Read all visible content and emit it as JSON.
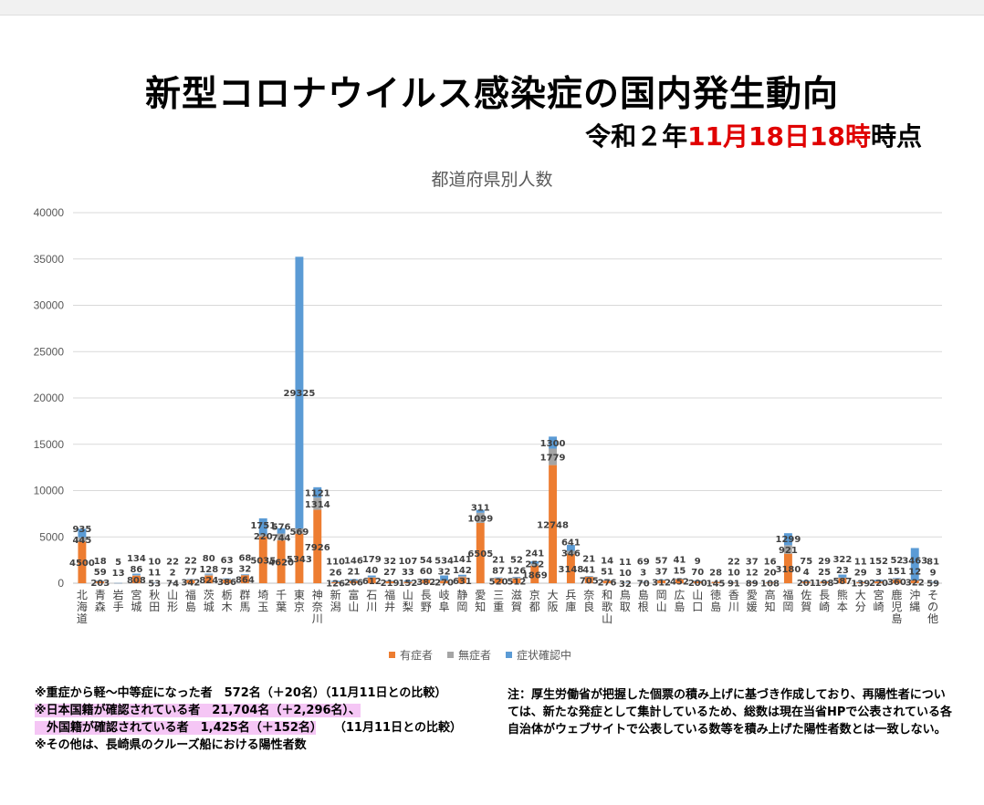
{
  "header": {
    "title": "新型コロナウイルス感染症の国内発生動向",
    "asof_prefix": "令和２年",
    "asof_red1": "11月18日",
    "asof_red2": "18時",
    "asof_suffix": "時点"
  },
  "chart_data": {
    "type": "bar",
    "stacked": true,
    "title": "都道府県別人数",
    "ylim": [
      0,
      40000
    ],
    "yticks": [
      0,
      5000,
      10000,
      15000,
      20000,
      25000,
      30000,
      35000,
      40000
    ],
    "grid": true,
    "legend_position": "bottom",
    "categories": [
      "北海道",
      "青森",
      "岩手",
      "宮城",
      "秋田",
      "山形",
      "福島",
      "茨城",
      "栃木",
      "群馬",
      "埼玉",
      "千葉",
      "東京",
      "神奈川",
      "新潟",
      "富山",
      "石川",
      "福井",
      "山梨",
      "長野",
      "岐阜",
      "静岡",
      "愛知",
      "三重",
      "滋賀",
      "京都",
      "大阪",
      "兵庫",
      "奈良",
      "和歌山",
      "鳥取",
      "島根",
      "岡山",
      "広島",
      "山口",
      "徳島",
      "香川",
      "愛媛",
      "高知",
      "福岡",
      "佐賀",
      "長崎",
      "熊本",
      "大分",
      "宮崎",
      "鹿児島",
      "沖縄",
      "その他"
    ],
    "series": [
      {
        "name": "有症者",
        "color": "#ed7d31",
        "values": [
          4500,
          203,
          5,
          808,
          53,
          74,
          342,
          824,
          386,
          864,
          5035,
          4620,
          5343,
          7926,
          126,
          266,
          612,
          219,
          152,
          382,
          270,
          631,
          6505,
          520,
          512,
          1869,
          12748,
          3148,
          705,
          276,
          32,
          70,
          312,
          452,
          200,
          145,
          91,
          89,
          108,
          3180,
          201,
          198,
          587,
          139,
          220,
          360,
          322,
          59
        ]
      },
      {
        "name": "無症者",
        "color": "#a5a5a5",
        "values": [
          445,
          59,
          13,
          86,
          11,
          2,
          77,
          128,
          75,
          32,
          220,
          744,
          569,
          1314,
          26,
          21,
          40,
          27,
          33,
          60,
          32,
          142,
          1099,
          87,
          126,
          252,
          1779,
          346,
          41,
          51,
          10,
          3,
          37,
          15,
          70,
          28,
          10,
          12,
          20,
          921,
          4,
          25,
          23,
          29,
          3,
          151,
          12,
          9
        ]
      },
      {
        "name": "症状確認中",
        "color": "#5b9bd5",
        "values": [
          935,
          18,
          5,
          134,
          10,
          22,
          22,
          80,
          63,
          68,
          1751,
          576,
          29325,
          1121,
          110,
          146,
          179,
          32,
          107,
          54,
          534,
          141,
          311,
          21,
          52,
          241,
          1300,
          641,
          21,
          14,
          11,
          69,
          57,
          41,
          9,
          0,
          22,
          37,
          16,
          1299,
          75,
          29,
          322,
          11,
          152,
          52,
          3463,
          81
        ]
      }
    ],
    "data_labels": [
      [
        "4500",
        "445",
        "935"
      ],
      [
        "203",
        "59",
        "18"
      ],
      [
        "",
        "13",
        "5"
      ],
      [
        "808",
        "86",
        "134"
      ],
      [
        "53",
        "11",
        "10"
      ],
      [
        "74",
        "2",
        "22"
      ],
      [
        "342",
        "77",
        "22"
      ],
      [
        "824",
        "128",
        "80"
      ],
      [
        "386",
        "75",
        "63"
      ],
      [
        "864",
        "32",
        "68"
      ],
      [
        "5035",
        "220",
        "1751"
      ],
      [
        "4620",
        "744",
        "576"
      ],
      [
        "5343",
        "569",
        "29325"
      ],
      [
        "7926",
        "1314",
        "1121"
      ],
      [
        "126",
        "26",
        "110"
      ],
      [
        "266",
        "21",
        "146"
      ],
      [
        "612",
        "40",
        "179"
      ],
      [
        "219",
        "27",
        "32"
      ],
      [
        "152",
        "33",
        "107"
      ],
      [
        "382",
        "60",
        "54"
      ],
      [
        "270",
        "32",
        "534"
      ],
      [
        "631",
        "142",
        "141"
      ],
      [
        "6505",
        "1099",
        "311"
      ],
      [
        "520",
        "87",
        "21"
      ],
      [
        "512",
        "126",
        "52"
      ],
      [
        "1869",
        "252",
        "241"
      ],
      [
        "12748",
        "1779",
        "1300"
      ],
      [
        "3148",
        "346",
        "641"
      ],
      [
        "705",
        "41",
        "21"
      ],
      [
        "276",
        "51",
        "14"
      ],
      [
        "32",
        "10",
        "11"
      ],
      [
        "70",
        "3",
        "69"
      ],
      [
        "312",
        "37",
        "57"
      ],
      [
        "452",
        "15",
        "41"
      ],
      [
        "200",
        "70",
        "9"
      ],
      [
        "145",
        "28",
        ""
      ],
      [
        "91",
        "10",
        "22"
      ],
      [
        "89",
        "12",
        "37"
      ],
      [
        "108",
        "20",
        "16"
      ],
      [
        "3180",
        "921",
        "1299"
      ],
      [
        "201",
        "4",
        "75"
      ],
      [
        "198",
        "25",
        "29"
      ],
      [
        "587",
        "23",
        "322"
      ],
      [
        "139",
        "29",
        "11"
      ],
      [
        "220",
        "3",
        "152"
      ],
      [
        "360",
        "151",
        "52"
      ],
      [
        "322",
        "12",
        "3463"
      ],
      [
        "59",
        "9",
        "81"
      ]
    ]
  },
  "notes": {
    "line1": "※重症から軽～中等症になった者　572名（＋20名）（11月11日との比較）",
    "line2": "※日本国籍が確認されている者　21,704名（＋2,296名）、",
    "line3": "　外国籍が確認されている者　1,425名（＋152名）",
    "line3_suffix": "（11月11日との比較）",
    "line4": "※その他は、長崎県のクルーズ船における陽性者数",
    "right": "注：厚生労働省が把握した個票の積み上げに基づき作成しており、再陽性者については、新たな発症として集計しているため、総数は現在当省HPで公表されている各自治体がウェブサイトで公表している数等を積み上げた陽性者数とは一致しない。"
  }
}
